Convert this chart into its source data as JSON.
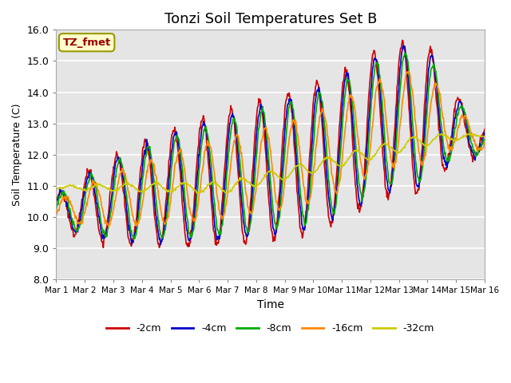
{
  "title": "Tonzi Soil Temperatures Set B",
  "xlabel": "Time",
  "ylabel": "Soil Temperature (C)",
  "annotation": "TZ_fmet",
  "ylim": [
    8.0,
    16.0
  ],
  "yticks": [
    8.0,
    9.0,
    10.0,
    11.0,
    12.0,
    13.0,
    14.0,
    15.0,
    16.0
  ],
  "xtick_labels": [
    "Mar 1",
    "Mar 2",
    "Mar 3",
    "Mar 4",
    "Mar 5",
    "Mar 6",
    "Mar 7",
    "Mar 8",
    "Mar 9",
    "Mar 10",
    "Mar 11",
    "Mar 12",
    "Mar 13",
    "Mar 14",
    "Mar 15",
    "Mar 16"
  ],
  "series_labels": [
    "-2cm",
    "-4cm",
    "-8cm",
    "-16cm",
    "-32cm"
  ],
  "series_colors": [
    "#cc0000",
    "#0000cc",
    "#00aa00",
    "#ff8800",
    "#cccc00"
  ],
  "background_color": "#e5e5e5",
  "title_fontsize": 13,
  "annotation_bg": "#ffffcc",
  "annotation_color": "#990000",
  "annotation_border": "#999900",
  "line_width": 1.2
}
